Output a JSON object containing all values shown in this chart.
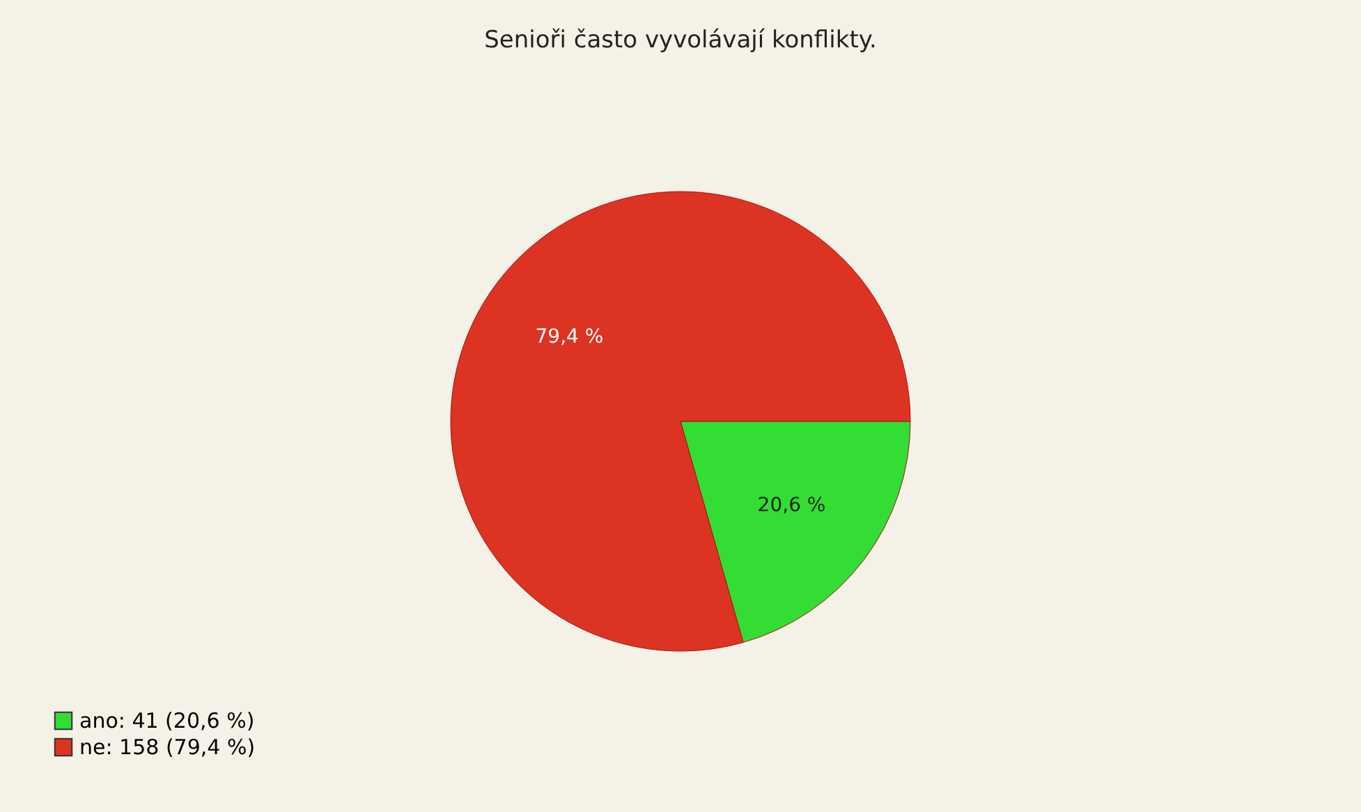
{
  "chart_data": {
    "type": "pie",
    "title": "Senioři často vyvolávají konflikty.",
    "categories": [
      "ano: 41 (20,6 %)",
      "ne: 158 (79,4 %)"
    ],
    "values": [
      20.6,
      79.4
    ],
    "value_labels": [
      "20,6 %",
      "79,4 %"
    ],
    "colors": [
      "#33dd33",
      "#dd3322"
    ],
    "legend": "bottom left"
  }
}
